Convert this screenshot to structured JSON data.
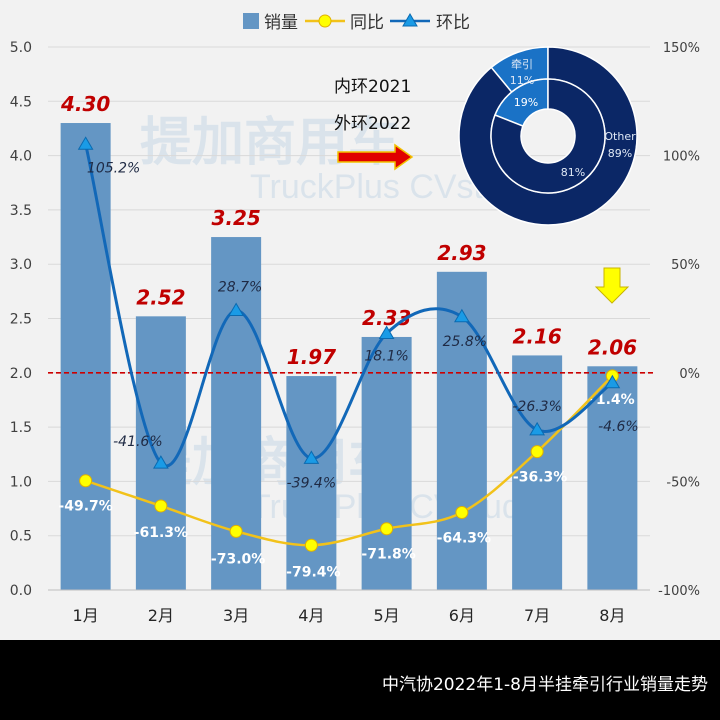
{
  "footer": {
    "title": "中汽协2022年1-8月半挂牵引行业销量走势"
  },
  "chart_data": {
    "type": "bar+line",
    "categories": [
      "1月",
      "2月",
      "3月",
      "4月",
      "5月",
      "6月",
      "7月",
      "8月"
    ],
    "left_axis": {
      "range": [
        0,
        5.0
      ],
      "ticks": [
        "0.0",
        "0.5",
        "1.0",
        "1.5",
        "2.0",
        "2.5",
        "3.0",
        "3.5",
        "4.0",
        "4.5",
        "5.0"
      ]
    },
    "right_axis": {
      "range": [
        -100,
        150
      ],
      "ticks": [
        "-100%",
        "-50%",
        "0%",
        "50%",
        "100%",
        "150%"
      ]
    },
    "series": [
      {
        "name": "销量",
        "type": "bar",
        "axis": "left",
        "color": "#6496c4",
        "values": [
          4.3,
          2.52,
          3.25,
          1.97,
          2.33,
          2.93,
          2.16,
          2.06
        ],
        "labels": [
          "4.30",
          "2.52",
          "3.25",
          "1.97",
          "2.33",
          "2.93",
          "2.16",
          "2.06"
        ]
      },
      {
        "name": "同比",
        "type": "line",
        "axis": "right",
        "color": "#f2c21a",
        "marker": "circle",
        "values": [
          -49.7,
          -61.3,
          -73.0,
          -79.4,
          -71.8,
          -64.3,
          -36.3,
          -1.4
        ],
        "labels": [
          "-49.7%",
          "-61.3%",
          "-73.0%",
          "-79.4%",
          "-71.8%",
          "-64.3%",
          "-36.3%",
          "-1.4%"
        ]
      },
      {
        "name": "环比",
        "type": "line",
        "axis": "right",
        "color": "#1268b8",
        "marker": "triangle",
        "values": [
          105.2,
          -41.6,
          28.7,
          -39.4,
          18.1,
          25.8,
          -26.3,
          -4.6
        ],
        "labels": [
          "105.2%",
          "-41.6%",
          "28.7%",
          "-39.4%",
          "18.1%",
          "25.8%",
          "-26.3%",
          "-4.6%"
        ]
      }
    ],
    "reference_line": {
      "value": 2.0,
      "axis": "left",
      "color": "#cc0000",
      "style": "dashed"
    },
    "legend": "top",
    "grid": true,
    "annotations": [
      "内环2021",
      "外环2022"
    ],
    "inset_donut": {
      "inner": {
        "label_year": "2021",
        "slices": [
          {
            "name": "牵引",
            "value": 19,
            "label": "19%"
          },
          {
            "name": "Other",
            "value": 81,
            "label": "81%"
          }
        ]
      },
      "outer": {
        "label_year": "2022",
        "slices": [
          {
            "name": "牵引",
            "value": 11,
            "label": "牵引 11%"
          },
          {
            "name": "Other",
            "value": 89,
            "label": "Other 89%"
          }
        ]
      },
      "colors": {
        "牵引": "#1a72c6",
        "Other": "#0b2766"
      }
    },
    "watermark": "提加商用车 TruckPlus CVstudio"
  }
}
